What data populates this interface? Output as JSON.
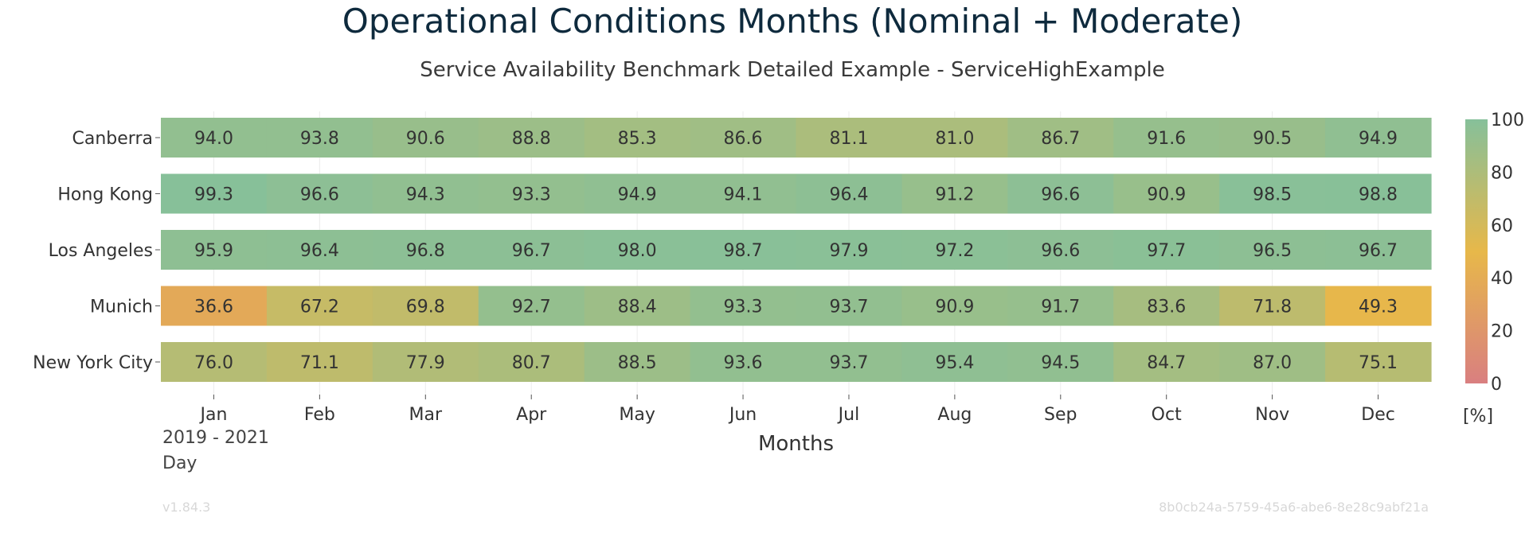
{
  "title": "Operational Conditions Months (Nominal + Moderate)",
  "subtitle": "Service Availability Benchmark Detailed Example - ServiceHighExample",
  "period": "2019 - 2021",
  "granularity": "Day",
  "version": "v1.84.3",
  "run_id": "8b0cb24a-5759-45a6-abe6-8e28c9abf21a",
  "chart_data": {
    "type": "heatmap",
    "title": "Operational Conditions Months (Nominal + Moderate)",
    "subtitle": "Service Availability Benchmark Detailed Example - ServiceHighExample",
    "xlabel": "Months",
    "ylabel": "",
    "x": [
      "Jan",
      "Feb",
      "Mar",
      "Apr",
      "May",
      "Jun",
      "Jul",
      "Aug",
      "Sep",
      "Oct",
      "Nov",
      "Dec"
    ],
    "y": [
      "Canberra",
      "Hong Kong",
      "Los Angeles",
      "Munich",
      "New York City"
    ],
    "values": [
      [
        94.0,
        93.8,
        90.6,
        88.8,
        85.3,
        86.6,
        81.1,
        81.0,
        86.7,
        91.6,
        90.5,
        94.9
      ],
      [
        99.3,
        96.6,
        94.3,
        93.3,
        94.9,
        94.1,
        96.4,
        91.2,
        96.6,
        90.9,
        98.5,
        98.8
      ],
      [
        95.9,
        96.4,
        96.8,
        96.7,
        98.0,
        98.7,
        97.9,
        97.2,
        96.6,
        97.7,
        96.5,
        96.7
      ],
      [
        36.6,
        67.2,
        69.8,
        92.7,
        88.4,
        93.3,
        93.7,
        90.9,
        91.7,
        83.6,
        71.8,
        49.3
      ],
      [
        76.0,
        71.1,
        77.9,
        80.7,
        88.5,
        93.6,
        93.7,
        95.4,
        94.5,
        84.7,
        87.0,
        75.1
      ]
    ],
    "colorbar": {
      "range": [
        0,
        100
      ],
      "ticks": [
        0,
        20,
        40,
        60,
        80,
        100
      ],
      "unit": "[%]",
      "colors": [
        "#d97f80",
        "#e7b84a",
        "#86c09a"
      ]
    },
    "grid": true,
    "legend": "right"
  }
}
